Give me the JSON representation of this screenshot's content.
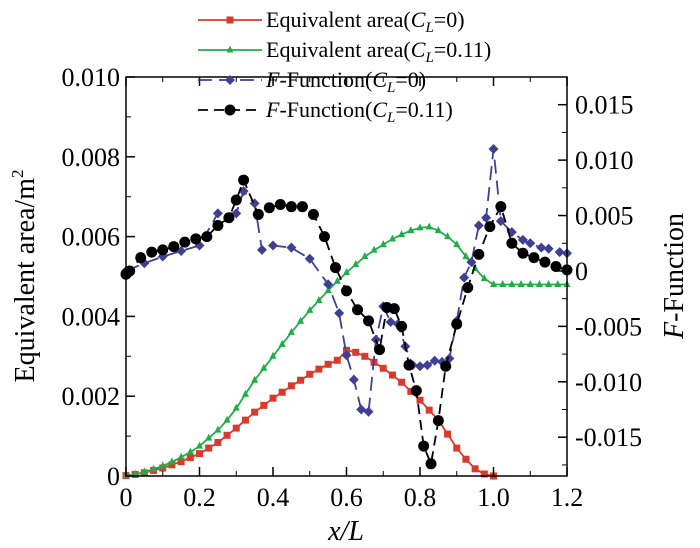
{
  "chart_data": {
    "type": "line",
    "x_ticks": [
      "0",
      "0.2",
      "0.4",
      "0.6",
      "0.8",
      "1.0",
      "1.2"
    ],
    "x_tick_values": [
      0,
      0.2,
      0.4,
      0.6,
      0.8,
      1.0,
      1.2
    ],
    "xlim": [
      0,
      1.2
    ],
    "y_left_ticks": [
      "0",
      "0.002",
      "0.004",
      "0.006",
      "0.008",
      "0.010"
    ],
    "y_left_tick_values": [
      0,
      0.002,
      0.004,
      0.006,
      0.008,
      0.01
    ],
    "ylim_left": [
      0,
      0.01
    ],
    "y_right_ticks": [
      "0.015",
      "0.010",
      "0.005",
      "0",
      "-0.005",
      "-0.010",
      "-0.015"
    ],
    "y_right_tick_values": [
      0.015,
      0.01,
      0.005,
      0,
      -0.005,
      -0.01,
      -0.015
    ],
    "ylim_right": [
      -0.0185,
      0.0175
    ],
    "xlabel_italic": "x/L",
    "ylabel_left_prefix": "Equivalent area/m",
    "ylabel_left_sup": "2",
    "ylabel_right_italic": "F",
    "ylabel_right_rest": "-Function",
    "legend": [
      {
        "base": "Equivalent area(",
        "italic_C": "C",
        "sub": "L",
        "rest": "=0)",
        "color": "#d93a2b",
        "dash": "",
        "marker": "square",
        "lead_italic": ""
      },
      {
        "base": "Equivalent area(",
        "italic_C": "C",
        "sub": "L",
        "rest": "=0.11)",
        "color": "#1fae48",
        "dash": "",
        "marker": "triangle",
        "lead_italic": ""
      },
      {
        "base": "-Function(",
        "italic_C": "C",
        "sub": "L",
        "rest": "=0)",
        "color": "#3f3f93",
        "dash": "14,7",
        "marker": "diamond",
        "lead_italic": "F"
      },
      {
        "base": "-Function(",
        "italic_C": "C",
        "sub": "L",
        "rest": "=0.11)",
        "color": "#000000",
        "dash": "10,6",
        "marker": "circle",
        "lead_italic": "F"
      }
    ],
    "series": [
      {
        "name": "Equivalent area(CL=0)",
        "axis": "left",
        "color": "#d93a2b",
        "marker": "square",
        "x": [
          0,
          0.025,
          0.05,
          0.075,
          0.1,
          0.125,
          0.15,
          0.175,
          0.2,
          0.225,
          0.25,
          0.275,
          0.3,
          0.325,
          0.35,
          0.375,
          0.4,
          0.425,
          0.45,
          0.475,
          0.5,
          0.525,
          0.55,
          0.575,
          0.6,
          0.625,
          0.65,
          0.675,
          0.7,
          0.725,
          0.75,
          0.775,
          0.8,
          0.825,
          0.85,
          0.875,
          0.9,
          0.925,
          0.95,
          0.975,
          1.0
        ],
        "y": [
          1e-05,
          4e-05,
          8e-05,
          0.00014,
          0.0002,
          0.00028,
          0.00036,
          0.00046,
          0.00056,
          0.0007,
          0.00084,
          0.00102,
          0.0012,
          0.0014,
          0.0016,
          0.00177,
          0.00195,
          0.0021,
          0.00226,
          0.0024,
          0.00255,
          0.00268,
          0.0028,
          0.0029,
          0.00315,
          0.0031,
          0.003,
          0.00285,
          0.0027,
          0.00253,
          0.00235,
          0.00212,
          0.0019,
          0.00165,
          0.0014,
          0.00105,
          0.0007,
          0.00042,
          0.00018,
          5e-05,
          0.0
        ]
      },
      {
        "name": "Equivalent area(CL=0.11)",
        "axis": "left",
        "color": "#1fae48",
        "marker": "triangle",
        "x": [
          0,
          0.025,
          0.05,
          0.075,
          0.1,
          0.125,
          0.15,
          0.175,
          0.2,
          0.225,
          0.25,
          0.275,
          0.3,
          0.325,
          0.35,
          0.375,
          0.4,
          0.425,
          0.45,
          0.475,
          0.5,
          0.525,
          0.55,
          0.575,
          0.6,
          0.625,
          0.65,
          0.675,
          0.7,
          0.725,
          0.75,
          0.775,
          0.8,
          0.825,
          0.85,
          0.875,
          0.9,
          0.925,
          0.95,
          0.975,
          1.0,
          1.025,
          1.05,
          1.075,
          1.1,
          1.125,
          1.15,
          1.175,
          1.2
        ],
        "y": [
          1e-05,
          4e-05,
          0.0001,
          0.00017,
          0.00025,
          0.00035,
          0.00047,
          0.0006,
          0.00075,
          0.00095,
          0.00115,
          0.0014,
          0.0017,
          0.00205,
          0.0024,
          0.0027,
          0.003,
          0.0033,
          0.0036,
          0.00388,
          0.00415,
          0.0044,
          0.00465,
          0.00488,
          0.0051,
          0.0053,
          0.0055,
          0.00566,
          0.0058,
          0.00594,
          0.00605,
          0.00615,
          0.00622,
          0.00624,
          0.00615,
          0.006,
          0.0058,
          0.0055,
          0.0052,
          0.00495,
          0.0048,
          0.0048,
          0.0048,
          0.0048,
          0.0048,
          0.0048,
          0.0048,
          0.0048,
          0.0048
        ]
      },
      {
        "name": "F-Function(CL=0)",
        "axis": "right",
        "color": "#3f3f93",
        "marker": "diamond",
        "x": [
          0,
          0.05,
          0.1,
          0.15,
          0.2,
          0.25,
          0.3,
          0.32,
          0.35,
          0.37,
          0.4,
          0.45,
          0.5,
          0.55,
          0.58,
          0.6,
          0.62,
          0.64,
          0.66,
          0.68,
          0.7,
          0.72,
          0.74,
          0.76,
          0.78,
          0.8,
          0.82,
          0.84,
          0.86,
          0.88,
          0.9,
          0.92,
          0.94,
          0.96,
          0.98,
          1.0,
          1.02,
          1.05,
          1.08,
          1.1,
          1.13,
          1.15,
          1.18,
          1.2
        ],
        "y": [
          0.0,
          0.0007,
          0.0013,
          0.0018,
          0.0023,
          0.0052,
          0.0052,
          0.0072,
          0.0061,
          0.0019,
          0.0023,
          0.0021,
          0.0011,
          -0.0012,
          -0.0038,
          -0.0076,
          -0.0098,
          -0.0125,
          -0.0127,
          -0.0062,
          -0.0032,
          -0.0046,
          -0.0048,
          -0.0068,
          -0.0085,
          -0.0086,
          -0.0085,
          -0.0081,
          -0.0082,
          -0.0079,
          -0.0045,
          -0.0006,
          0.0008,
          0.0041,
          0.0048,
          0.011,
          0.0045,
          0.0035,
          0.0028,
          0.0025,
          0.0021,
          0.002,
          0.0017,
          0.0016
        ]
      },
      {
        "name": "F-Function(CL=0.11)",
        "axis": "right",
        "color": "#000000",
        "marker": "circle",
        "x": [
          0,
          0.01,
          0.04,
          0.07,
          0.1,
          0.13,
          0.16,
          0.19,
          0.22,
          0.25,
          0.28,
          0.3,
          0.32,
          0.36,
          0.39,
          0.42,
          0.45,
          0.48,
          0.51,
          0.54,
          0.57,
          0.6,
          0.63,
          0.66,
          0.69,
          0.71,
          0.73,
          0.75,
          0.77,
          0.79,
          0.81,
          0.83,
          0.85,
          0.87,
          0.9,
          0.93,
          0.96,
          0.99,
          1.02,
          1.05,
          1.08,
          1.11,
          1.14,
          1.17,
          1.2
        ],
        "y": [
          -0.0003,
          0.0,
          0.0012,
          0.0017,
          0.0019,
          0.0022,
          0.0026,
          0.0029,
          0.0031,
          0.0041,
          0.0048,
          0.0064,
          0.0082,
          0.0051,
          0.0057,
          0.006,
          0.0058,
          0.0058,
          0.0051,
          0.0031,
          0.0003,
          -0.0018,
          -0.0035,
          -0.0045,
          -0.0071,
          -0.0033,
          -0.0034,
          -0.005,
          -0.0085,
          -0.0108,
          -0.0158,
          -0.0174,
          -0.0135,
          -0.0086,
          -0.0048,
          -0.0015,
          0.0015,
          0.004,
          0.0058,
          0.0025,
          0.0016,
          0.0012,
          0.0008,
          0.0004,
          0.0001
        ]
      }
    ]
  }
}
